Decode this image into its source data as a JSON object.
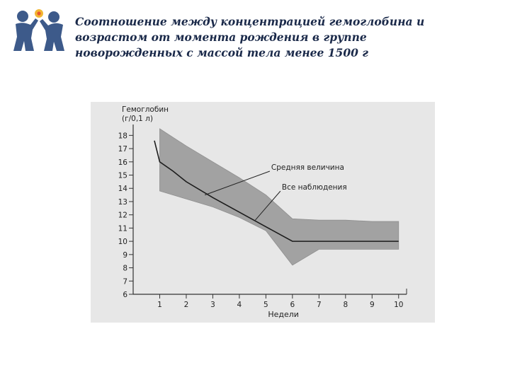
{
  "slide": {
    "title_lines": [
      "Соотношение между концентрацией гемоглобина и",
      "возрастом от момента рождения в группе",
      "новорожденных с массой тела менее 1500 г"
    ]
  },
  "colors": {
    "title": "#1b2a4a",
    "range_band": "#a2a2a2",
    "mean_line": "#1c1c1c",
    "logo": "#3d5a8a"
  },
  "chart_data": {
    "type": "area",
    "ylabel": "Гемоглобин (г/0,1 л)",
    "ylabel_lines": [
      "Гемоглобин",
      "(г/0,1 л)"
    ],
    "xlabel": "Недели",
    "xlim": [
      0,
      10.3
    ],
    "ylim": [
      6,
      18.5
    ],
    "x_ticks": [
      1,
      2,
      3,
      4,
      5,
      6,
      7,
      8,
      9,
      10
    ],
    "y_ticks": [
      6,
      7,
      8,
      9,
      10,
      11,
      12,
      13,
      14,
      15,
      16,
      17,
      18
    ],
    "series": [
      {
        "name": "Средняя величина",
        "x": [
          0.8,
          1,
          1.5,
          2,
          3,
          4,
          5,
          6,
          7,
          8,
          9,
          10
        ],
        "y": [
          17.6,
          16,
          15.3,
          14.5,
          13.3,
          12.2,
          11.1,
          10,
          10,
          10,
          10,
          10
        ]
      },
      {
        "name": "Все наблюдения",
        "x": [
          1,
          2,
          3,
          4,
          5,
          6,
          7,
          8,
          9,
          10
        ],
        "upper": [
          18.5,
          17.2,
          16,
          14.8,
          13.5,
          11.7,
          11.6,
          11.6,
          11.5,
          11.5
        ],
        "lower": [
          13.8,
          13.2,
          12.6,
          11.8,
          10.8,
          8.2,
          9.4,
          9.4,
          9.4,
          9.4
        ]
      }
    ],
    "annotations": [
      {
        "text": "Средняя величина",
        "x": 5.2,
        "y": 15.4,
        "point_x": 2.7,
        "point_y": 13.5
      },
      {
        "text": "Все наблюдения",
        "x": 5.6,
        "y": 13.9,
        "point_x": 4.6,
        "point_y": 11.6
      }
    ],
    "grid": false
  }
}
